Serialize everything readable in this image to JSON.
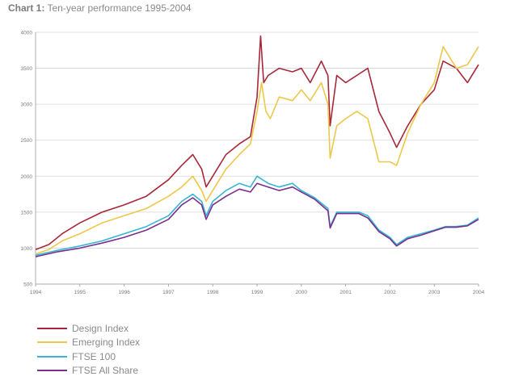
{
  "chart_data": {
    "type": "line",
    "title": "Ten-year performance 1995-2004",
    "title_lead": "Chart 1:",
    "xlabel": "",
    "ylabel": "",
    "x_ticks": [
      "1994",
      "1995",
      "1996",
      "1997",
      "1998",
      "1999",
      "2000",
      "2001",
      "2002",
      "2003",
      "2004"
    ],
    "y_ticks": [
      "500",
      "1000",
      "1500",
      "2000",
      "2500",
      "3000",
      "3500",
      "4000"
    ],
    "ylim": [
      500,
      4000
    ],
    "xlim": [
      1994,
      2004
    ],
    "grid": true,
    "legend_position": "bottom-left",
    "series": [
      {
        "name": "Design Index",
        "color": "#a8283a",
        "x": [
          1994.0,
          1994.3,
          1994.6,
          1995.0,
          1995.5,
          1996.0,
          1996.5,
          1997.0,
          1997.3,
          1997.55,
          1997.75,
          1997.85,
          1998.0,
          1998.3,
          1998.6,
          1998.85,
          1999.0,
          1999.08,
          1999.15,
          1999.25,
          1999.5,
          1999.8,
          2000.0,
          2000.2,
          2000.45,
          2000.6,
          2000.65,
          2000.8,
          2001.0,
          2001.25,
          2001.5,
          2001.75,
          2002.0,
          2002.15,
          2002.4,
          2002.7,
          2003.0,
          2003.2,
          2003.5,
          2003.75,
          2004.0
        ],
        "values": [
          980,
          1050,
          1200,
          1350,
          1500,
          1600,
          1720,
          1950,
          2150,
          2300,
          2100,
          1850,
          2000,
          2300,
          2450,
          2550,
          3100,
          3950,
          3300,
          3400,
          3500,
          3450,
          3500,
          3300,
          3600,
          3400,
          2700,
          3400,
          3300,
          3400,
          3500,
          2900,
          2600,
          2400,
          2700,
          3000,
          3200,
          3600,
          3500,
          3300,
          3550
        ]
      },
      {
        "name": "Emerging Index",
        "color": "#ecc84a",
        "x": [
          1994.0,
          1994.3,
          1994.6,
          1995.0,
          1995.5,
          1996.0,
          1996.5,
          1997.0,
          1997.3,
          1997.55,
          1997.75,
          1997.85,
          1998.0,
          1998.3,
          1998.6,
          1998.85,
          1999.0,
          1999.1,
          1999.2,
          1999.3,
          1999.5,
          1999.8,
          2000.0,
          2000.2,
          2000.45,
          2000.6,
          2000.65,
          2000.8,
          2001.0,
          2001.25,
          2001.5,
          2001.75,
          2002.0,
          2002.15,
          2002.4,
          2002.7,
          2003.0,
          2003.2,
          2003.5,
          2003.75,
          2004.0
        ],
        "values": [
          920,
          980,
          1100,
          1200,
          1350,
          1450,
          1550,
          1720,
          1850,
          2000,
          1800,
          1650,
          1800,
          2100,
          2300,
          2450,
          2900,
          3300,
          2900,
          2800,
          3100,
          3050,
          3200,
          3050,
          3300,
          3000,
          2250,
          2700,
          2800,
          2900,
          2800,
          2200,
          2200,
          2150,
          2600,
          3000,
          3300,
          3800,
          3500,
          3550,
          3800
        ]
      },
      {
        "name": "FTSE 100",
        "color": "#36b6d6",
        "x": [
          1994.0,
          1994.5,
          1995.0,
          1995.5,
          1996.0,
          1996.5,
          1997.0,
          1997.3,
          1997.55,
          1997.75,
          1997.85,
          1998.0,
          1998.3,
          1998.6,
          1998.85,
          1999.0,
          1999.25,
          1999.5,
          1999.8,
          2000.0,
          2000.3,
          2000.6,
          2000.65,
          2000.8,
          2001.0,
          2001.3,
          2001.5,
          2001.75,
          2002.0,
          2002.15,
          2002.4,
          2002.7,
          2003.0,
          2003.25,
          2003.5,
          2003.75,
          2004.0
        ],
        "values": [
          900,
          970,
          1030,
          1100,
          1200,
          1300,
          1450,
          1650,
          1750,
          1650,
          1450,
          1650,
          1800,
          1900,
          1850,
          2000,
          1900,
          1850,
          1900,
          1800,
          1700,
          1550,
          1300,
          1500,
          1500,
          1500,
          1450,
          1250,
          1150,
          1050,
          1150,
          1200,
          1250,
          1300,
          1300,
          1320,
          1420
        ]
      },
      {
        "name": "FTSE All Share",
        "color": "#7a2f8e",
        "x": [
          1994.0,
          1994.5,
          1995.0,
          1995.5,
          1996.0,
          1996.5,
          1997.0,
          1997.3,
          1997.55,
          1997.75,
          1997.85,
          1998.0,
          1998.3,
          1998.6,
          1998.85,
          1999.0,
          1999.25,
          1999.5,
          1999.8,
          2000.0,
          2000.3,
          2000.6,
          2000.65,
          2000.8,
          2001.0,
          2001.3,
          2001.5,
          2001.75,
          2002.0,
          2002.15,
          2002.4,
          2002.7,
          2003.0,
          2003.25,
          2003.5,
          2003.75,
          2004.0
        ],
        "values": [
          880,
          950,
          1000,
          1070,
          1150,
          1250,
          1400,
          1600,
          1700,
          1600,
          1400,
          1600,
          1720,
          1820,
          1780,
          1900,
          1850,
          1800,
          1850,
          1780,
          1680,
          1520,
          1280,
          1480,
          1480,
          1480,
          1420,
          1230,
          1130,
          1030,
          1130,
          1180,
          1240,
          1290,
          1290,
          1310,
          1400
        ]
      }
    ]
  }
}
